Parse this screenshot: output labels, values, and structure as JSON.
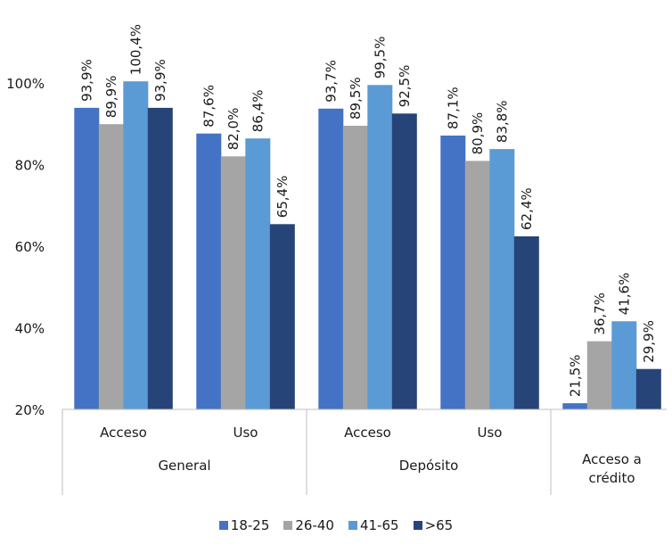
{
  "chart_data": {
    "type": "bar",
    "groups": [
      {
        "label": "General",
        "categories": [
          "Acceso",
          "Uso"
        ]
      },
      {
        "label": "Depósito",
        "categories": [
          "Acceso",
          "Uso"
        ]
      },
      {
        "label": "Acceso a\ncrédito",
        "categories": [
          ""
        ]
      }
    ],
    "series": [
      {
        "name": "18-25",
        "color": "#4472C4",
        "values": [
          93.9,
          87.6,
          93.7,
          87.1,
          21.5
        ],
        "labels": [
          "93,9%",
          "87,6%",
          "93,7%",
          "87,1%",
          "21,5%"
        ]
      },
      {
        "name": "26-40",
        "color": "#A5A5A5",
        "values": [
          89.9,
          82.0,
          89.5,
          80.9,
          36.7
        ],
        "labels": [
          "89,9%",
          "82,0%",
          "89,5%",
          "80,9%",
          "36,7%"
        ]
      },
      {
        "name": "41-65",
        "color": "#5B9BD5",
        "values": [
          100.4,
          86.4,
          99.5,
          83.8,
          41.6
        ],
        "labels": [
          "100,4%",
          "86,4%",
          "99,5%",
          "83,8%",
          "41,6%"
        ]
      },
      {
        "name": ">65",
        "color": "#264478",
        "values": [
          93.9,
          65.4,
          92.5,
          62.4,
          29.9
        ],
        "labels": [
          "93,9%",
          "65,4%",
          "92,5%",
          "62,4%",
          "29,9%"
        ]
      }
    ],
    "ylim": [
      20,
      100
    ],
    "yticks": [
      20,
      40,
      60,
      80,
      100
    ],
    "ytick_labels": [
      "20%",
      "40%",
      "60%",
      "80%",
      "100%"
    ],
    "legend_position": "bottom",
    "grid": false
  }
}
